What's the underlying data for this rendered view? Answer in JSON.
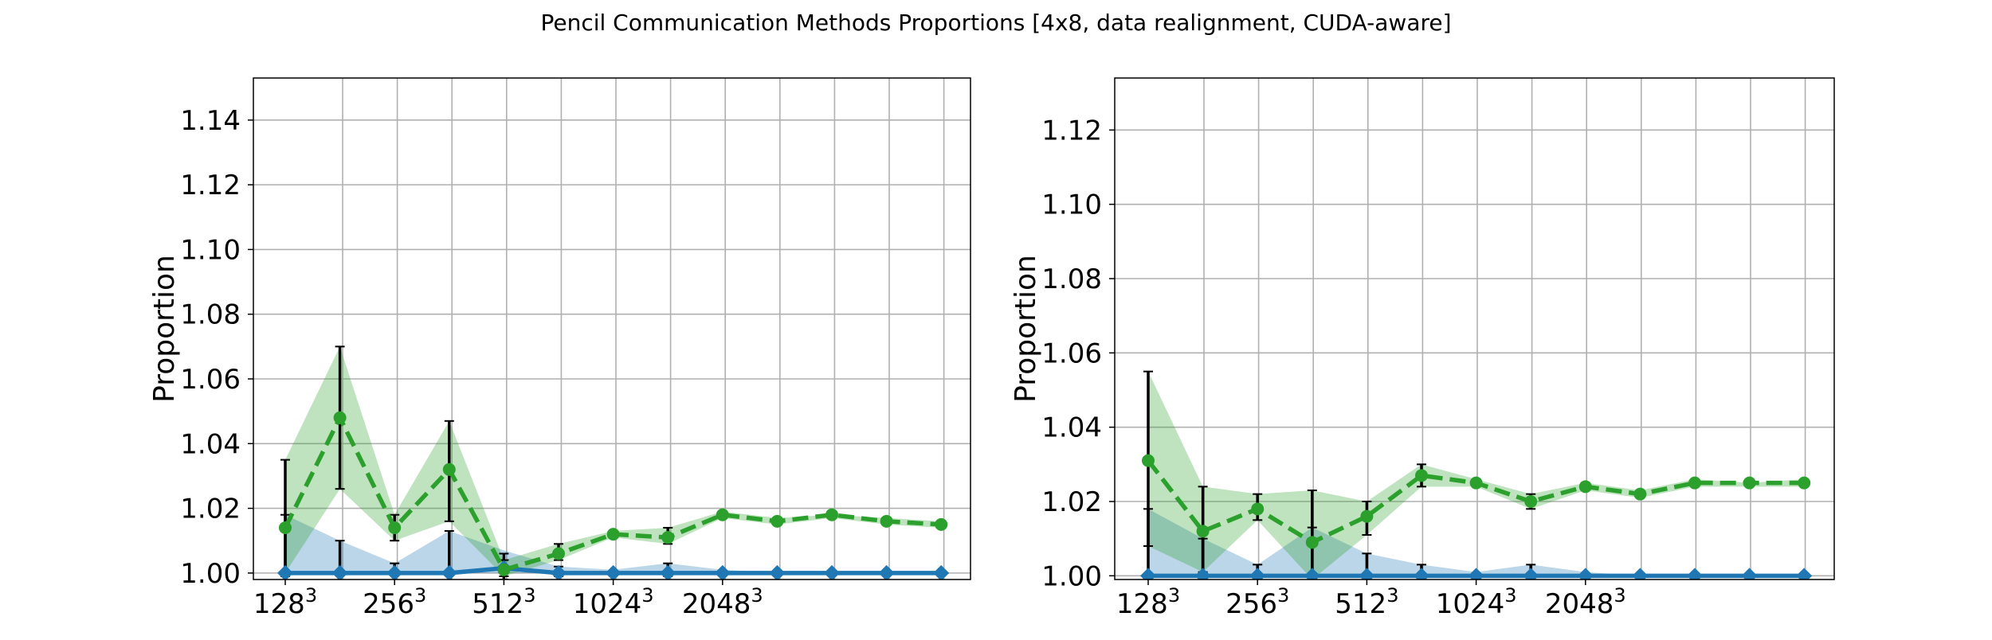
{
  "figure": {
    "title": "Pencil Communication Methods Proportions [4x8, data realignment, CUDA-aware]"
  },
  "chart_data": [
    {
      "type": "line",
      "ylabel": "Proportion",
      "xlabel": "",
      "ylim": [
        0.998,
        1.153
      ],
      "yticks": [
        1.0,
        1.02,
        1.04,
        1.06,
        1.08,
        1.1,
        1.12,
        1.14
      ],
      "xticks": [
        {
          "base": "128",
          "exp": "3"
        },
        {
          "base": "256",
          "exp": "3"
        },
        {
          "base": "512",
          "exp": "3"
        },
        {
          "base": "1024",
          "exp": "3"
        },
        {
          "base": "2048",
          "exp": "3"
        }
      ],
      "grid": true,
      "series": [
        {
          "color": "#1f77b4",
          "style": "solid",
          "marker": "diamond",
          "y": [
            1.0,
            1.0,
            1.0,
            1.0,
            1.0015,
            1.0,
            1.0,
            1.0,
            1.0,
            1.0,
            1.0,
            1.0,
            1.0
          ],
          "band_low": [
            1.0,
            1.0,
            1.0,
            1.0,
            1.0,
            1.0,
            1.0,
            1.0,
            1.0,
            1.0,
            1.0,
            1.0,
            1.0
          ],
          "band_high": [
            1.018,
            1.01,
            1.003,
            1.013,
            1.007,
            1.002,
            1.001,
            1.003,
            1.001,
            1.0,
            1.0,
            1.0,
            1.0
          ],
          "err_low": [
            1.0,
            1.0,
            1.0,
            1.0,
            0.998,
            0.999,
            0.999,
            0.999,
            0.999,
            1.0,
            1.0,
            1.0,
            1.0
          ],
          "err_high": [
            1.018,
            1.01,
            1.003,
            1.013,
            1.006,
            1.002,
            1.001,
            1.003,
            1.001,
            1.0,
            1.0,
            1.0,
            1.0
          ]
        },
        {
          "color": "#2ca02c",
          "style": "dashed",
          "marker": "circle",
          "y": [
            1.014,
            1.048,
            1.014,
            1.032,
            1.001,
            1.006,
            1.012,
            1.011,
            1.018,
            1.016,
            1.018,
            1.016,
            1.015
          ],
          "band_low": [
            1.0,
            1.026,
            1.01,
            1.016,
            0.999,
            1.004,
            1.011,
            1.009,
            1.017,
            1.015,
            1.017,
            1.015,
            1.014
          ],
          "band_high": [
            1.035,
            1.07,
            1.018,
            1.047,
            1.004,
            1.009,
            1.013,
            1.014,
            1.019,
            1.017,
            1.018,
            1.017,
            1.016
          ],
          "err_low": [
            0.999,
            1.026,
            1.01,
            1.016,
            0.999,
            1.004,
            1.011,
            1.009,
            1.017,
            1.015,
            1.017,
            1.015,
            1.014
          ],
          "err_high": [
            1.035,
            1.07,
            1.018,
            1.047,
            1.004,
            1.009,
            1.013,
            1.014,
            1.019,
            1.017,
            1.018,
            1.017,
            1.016
          ]
        }
      ]
    },
    {
      "type": "line",
      "ylabel": "Proportion",
      "xlabel": "",
      "ylim": [
        0.999,
        1.134
      ],
      "yticks": [
        1.0,
        1.02,
        1.04,
        1.06,
        1.08,
        1.1,
        1.12
      ],
      "xticks": [
        {
          "base": "128",
          "exp": "3"
        },
        {
          "base": "256",
          "exp": "3"
        },
        {
          "base": "512",
          "exp": "3"
        },
        {
          "base": "1024",
          "exp": "3"
        },
        {
          "base": "2048",
          "exp": "3"
        }
      ],
      "grid": true,
      "series": [
        {
          "color": "#1f77b4",
          "style": "solid",
          "marker": "diamond",
          "y": [
            1.0,
            1.0,
            1.0,
            1.0,
            1.0,
            1.0,
            1.0,
            1.0,
            1.0,
            1.0,
            1.0,
            1.0,
            1.0
          ],
          "band_low": [
            1.0,
            1.0,
            1.0,
            1.0,
            1.0,
            1.0,
            1.0,
            1.0,
            1.0,
            1.0,
            1.0,
            1.0,
            1.0
          ],
          "band_high": [
            1.018,
            1.01,
            1.003,
            1.013,
            1.006,
            1.003,
            1.001,
            1.003,
            1.001,
            1.0,
            1.0,
            1.0,
            1.0
          ],
          "err_low": [
            0.999,
            0.999,
            0.999,
            0.999,
            0.999,
            0.999,
            0.999,
            0.999,
            0.999,
            1.0,
            1.0,
            1.0,
            1.0
          ],
          "err_high": [
            1.018,
            1.01,
            1.003,
            1.013,
            1.006,
            1.003,
            1.001,
            1.003,
            1.001,
            1.0,
            1.0,
            1.0,
            1.0
          ]
        },
        {
          "color": "#2ca02c",
          "style": "dashed",
          "marker": "circle",
          "y": [
            1.031,
            1.012,
            1.018,
            1.009,
            1.016,
            1.027,
            1.025,
            1.02,
            1.024,
            1.022,
            1.025,
            1.025,
            1.025
          ],
          "band_low": [
            1.008,
            1.001,
            1.015,
            0.999,
            1.011,
            1.024,
            1.024,
            1.018,
            1.023,
            1.021,
            1.024,
            1.024,
            1.024
          ],
          "band_high": [
            1.055,
            1.024,
            1.022,
            1.023,
            1.02,
            1.03,
            1.026,
            1.022,
            1.025,
            1.023,
            1.026,
            1.025,
            1.026
          ],
          "err_low": [
            1.008,
            1.001,
            1.015,
            0.999,
            1.011,
            1.024,
            1.024,
            1.018,
            1.023,
            1.021,
            1.024,
            1.024,
            1.024
          ],
          "err_high": [
            1.055,
            1.024,
            1.022,
            1.023,
            1.02,
            1.03,
            1.026,
            1.022,
            1.025,
            1.023,
            1.026,
            1.025,
            1.026
          ]
        }
      ]
    }
  ]
}
